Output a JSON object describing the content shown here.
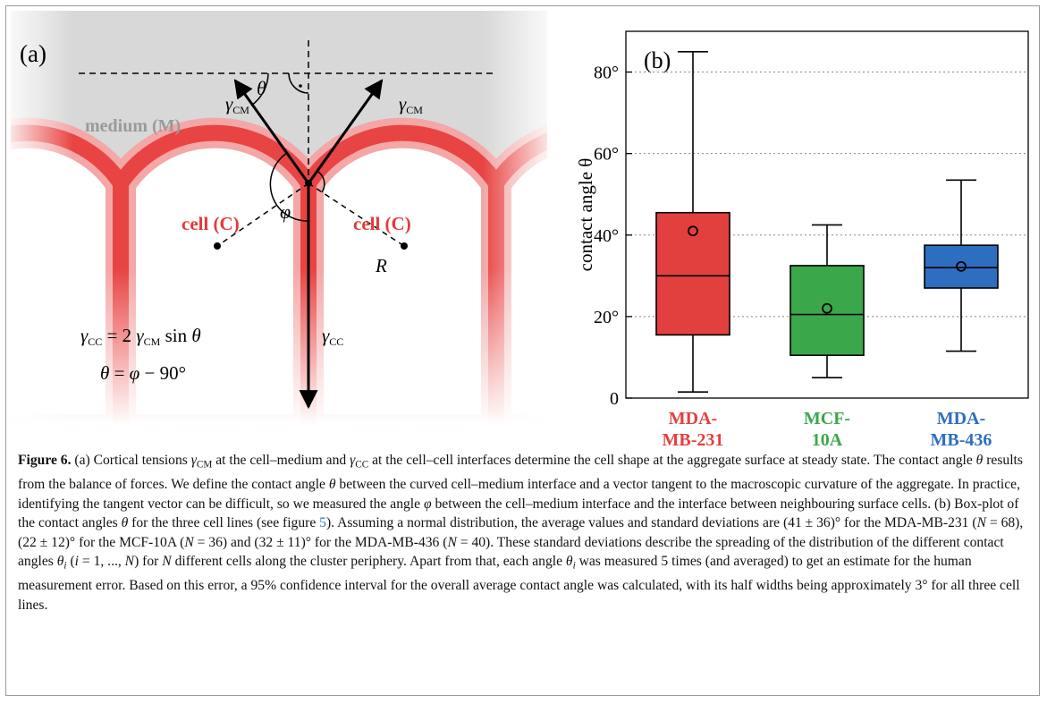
{
  "panel_a": {
    "label": "(a)",
    "medium": "medium (M)",
    "cell_left": "cell (C)",
    "cell_right": "cell (C)",
    "theta": "θ",
    "phi": "φ",
    "radius": "R",
    "gamma_cm_left": [
      "γ",
      "CM"
    ],
    "gamma_cm_right": [
      "γ",
      "CM"
    ],
    "gamma_cc": [
      "γ",
      "CC"
    ],
    "equation_1": [
      "γ",
      "CC",
      " = 2 ",
      "γ",
      "CM",
      " sin ",
      "θ"
    ],
    "equation_2": [
      "θ",
      " = ",
      "φ",
      " − 90°"
    ]
  },
  "chart_data": {
    "type": "box",
    "label": "(b)",
    "y_label": "contact angle θ",
    "categories": [
      "MDA-MB-231",
      "MCF-10A",
      "MDA-MB-436"
    ],
    "boxes": [
      {
        "min": 1.5,
        "q1": 15.5,
        "median": 30,
        "q3": 45.5,
        "max": 85,
        "mean": 41,
        "color": "#e2403f"
      },
      {
        "min": 5,
        "q1": 10.5,
        "median": 20.5,
        "q3": 32.5,
        "max": 42.5,
        "mean": 22,
        "color": "#3aa84a"
      },
      {
        "min": 11.5,
        "q1": 27,
        "median": 32,
        "q3": 37.5,
        "max": 53.5,
        "mean": 32.3,
        "color": "#2e6ec0"
      }
    ],
    "ylim": [
      0,
      90
    ],
    "yticks": [
      0,
      {
        "value": 20,
        "label": "20°"
      },
      {
        "value": 40,
        "label": "40°"
      },
      {
        "value": 60,
        "label": "60°"
      },
      {
        "value": 80,
        "label": "80°"
      }
    ],
    "grid": true
  },
  "caption": {
    "runs": [
      {
        "text": "Figure 6.",
        "style": "b"
      },
      {
        "text": " (a) Cortical tensions "
      },
      {
        "text": "γ",
        "style": "i"
      },
      {
        "text": "CM",
        "style": "sub"
      },
      {
        "text": " at the cell–medium and "
      },
      {
        "text": "γ",
        "style": "i"
      },
      {
        "text": "CC",
        "style": "sub"
      },
      {
        "text": " at the cell–cell interfaces determine the cell shape at the aggregate surface at steady state. The contact angle "
      },
      {
        "text": "θ",
        "style": "i"
      },
      {
        "text": " results from the balance of forces. We define the contact angle "
      },
      {
        "text": "θ",
        "style": "i"
      },
      {
        "text": " between the curved cell–medium interface and a vector tangent to the macroscopic curvature of the aggregate. In practice, identifying the tangent vector can be difficult, so we measured the angle "
      },
      {
        "text": "φ",
        "style": "i"
      },
      {
        "text": " between the cell–medium interface and the interface between neighbouring surface cells. (b) Box-plot of the contact angles "
      },
      {
        "text": "θ",
        "style": "i"
      },
      {
        "text": " for the three cell lines (see figure "
      },
      {
        "text": "5",
        "style": "link"
      },
      {
        "text": "). Assuming a normal distribution, the average values and standard deviations are (41 ± 36)° for the MDA-MB-231 ("
      },
      {
        "text": "N",
        "style": "i"
      },
      {
        "text": " = 68), (22 ± 12)° for the MCF-10A ("
      },
      {
        "text": "N",
        "style": "i"
      },
      {
        "text": " = 36) and (32 ± 11)° for the MDA-MB-436 ("
      },
      {
        "text": "N",
        "style": "i"
      },
      {
        "text": " = 40). These standard deviations describe the spreading of the distribution of the different contact angles "
      },
      {
        "text": "θ",
        "style": "i"
      },
      {
        "text": "i",
        "style": "isub"
      },
      {
        "text": " ("
      },
      {
        "text": "i",
        "style": "i"
      },
      {
        "text": " = 1, ..., "
      },
      {
        "text": "N",
        "style": "i"
      },
      {
        "text": ") for "
      },
      {
        "text": "N",
        "style": "i"
      },
      {
        "text": " different cells along the cluster periphery. Apart from that, each angle "
      },
      {
        "text": "θ",
        "style": "i"
      },
      {
        "text": "i",
        "style": "isub"
      },
      {
        "text": " was measured 5 times (and averaged) to get an estimate for the human measurement error. Based on this error, a 95% confidence interval for the overall average contact angle was calculated, with its half widths being approximately 3° for all three cell lines."
      }
    ]
  }
}
